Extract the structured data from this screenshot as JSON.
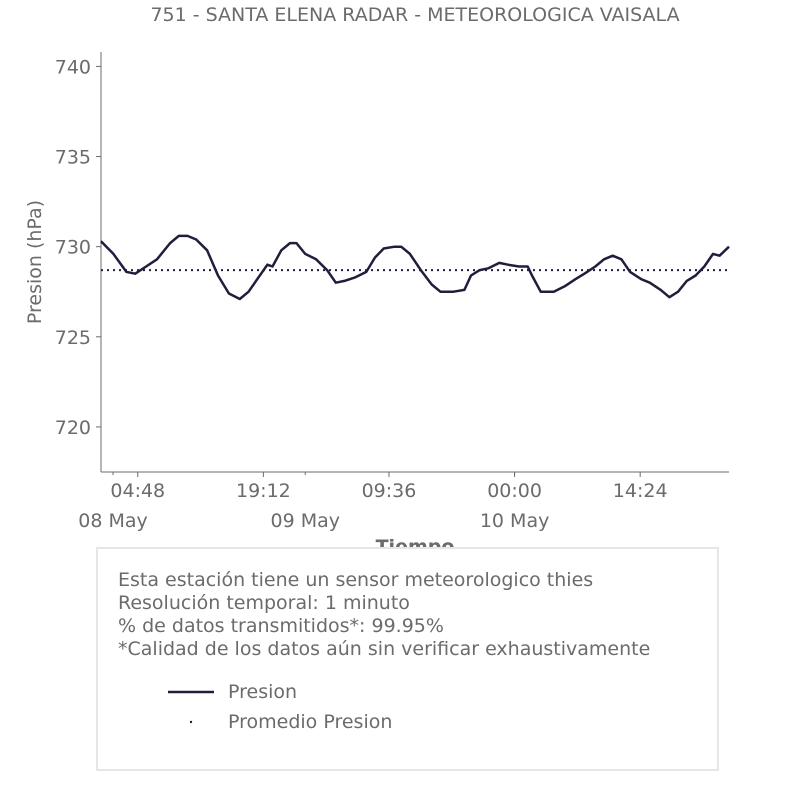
{
  "chart_data": {
    "type": "line",
    "title": "751 - SANTA ELENA RADAR - METEOROLOGICA VAISALA",
    "xlabel": "Tiempo",
    "ylabel": "Presion (hPa)",
    "ylim": [
      717.5,
      740.8
    ],
    "xlim": [
      "2024-05-08 00:35",
      "2024-05-11 00:35"
    ],
    "yticks": [
      720,
      725,
      730,
      735,
      740
    ],
    "xticks": [
      {
        "time": "2024-05-08 04:48",
        "label": "04:48"
      },
      {
        "time": "2024-05-08 19:12",
        "label": "19:12"
      },
      {
        "time": "2024-05-09 09:36",
        "label": "09:36"
      },
      {
        "time": "2024-05-10 00:00",
        "label": "00:00"
      },
      {
        "time": "2024-05-10 14:24",
        "label": "14:24"
      }
    ],
    "date_labels": [
      {
        "time": "2024-05-08 00:00",
        "label": "08 May"
      },
      {
        "time": "2024-05-09 00:00",
        "label": "09 May"
      },
      {
        "time": "2024-05-10 00:00",
        "label": "10 May"
      }
    ],
    "grid": false,
    "series": [
      {
        "name": "Presion",
        "color": "#1f1f3d",
        "style": "solid",
        "points": [
          [
            "2024-05-08 00:35",
            730.3
          ],
          [
            "2024-05-08 02:00",
            729.6
          ],
          [
            "2024-05-08 03:30",
            728.6
          ],
          [
            "2024-05-08 04:30",
            728.5
          ],
          [
            "2024-05-08 05:45",
            728.9
          ],
          [
            "2024-05-08 07:00",
            729.3
          ],
          [
            "2024-05-08 08:30",
            730.2
          ],
          [
            "2024-05-08 09:30",
            730.6
          ],
          [
            "2024-05-08 10:30",
            730.6
          ],
          [
            "2024-05-08 11:30",
            730.4
          ],
          [
            "2024-05-08 12:45",
            729.8
          ],
          [
            "2024-05-08 14:00",
            728.4
          ],
          [
            "2024-05-08 15:15",
            727.4
          ],
          [
            "2024-05-08 16:30",
            727.1
          ],
          [
            "2024-05-08 17:30",
            727.5
          ],
          [
            "2024-05-08 18:30",
            728.2
          ],
          [
            "2024-05-08 19:40",
            729.0
          ],
          [
            "2024-05-08 20:15",
            728.9
          ],
          [
            "2024-05-08 21:15",
            729.8
          ],
          [
            "2024-05-08 22:15",
            730.2
          ],
          [
            "2024-05-08 23:00",
            730.2
          ],
          [
            "2024-05-09 00:00",
            729.6
          ],
          [
            "2024-05-09 01:15",
            729.3
          ],
          [
            "2024-05-09 02:30",
            728.7
          ],
          [
            "2024-05-09 03:30",
            728.0
          ],
          [
            "2024-05-09 04:30",
            728.1
          ],
          [
            "2024-05-09 05:45",
            728.3
          ],
          [
            "2024-05-09 07:00",
            728.6
          ],
          [
            "2024-05-09 08:00",
            729.4
          ],
          [
            "2024-05-09 09:00",
            729.9
          ],
          [
            "2024-05-09 10:15",
            730.0
          ],
          [
            "2024-05-09 11:00",
            730.0
          ],
          [
            "2024-05-09 12:00",
            729.6
          ],
          [
            "2024-05-09 13:15",
            728.7
          ],
          [
            "2024-05-09 14:30",
            727.9
          ],
          [
            "2024-05-09 15:30",
            727.5
          ],
          [
            "2024-05-09 17:00",
            727.5
          ],
          [
            "2024-05-09 18:15",
            727.6
          ],
          [
            "2024-05-09 19:00",
            728.4
          ],
          [
            "2024-05-09 20:00",
            728.7
          ],
          [
            "2024-05-09 21:00",
            728.8
          ],
          [
            "2024-05-09 22:15",
            729.1
          ],
          [
            "2024-05-09 23:15",
            729.0
          ],
          [
            "2024-05-10 00:30",
            728.9
          ],
          [
            "2024-05-10 01:30",
            728.9
          ],
          [
            "2024-05-10 02:00",
            728.4
          ],
          [
            "2024-05-10 03:00",
            727.5
          ],
          [
            "2024-05-10 04:30",
            727.5
          ],
          [
            "2024-05-10 05:45",
            727.8
          ],
          [
            "2024-05-10 07:00",
            728.2
          ],
          [
            "2024-05-10 08:00",
            728.5
          ],
          [
            "2024-05-10 09:15",
            728.9
          ],
          [
            "2024-05-10 10:15",
            729.3
          ],
          [
            "2024-05-10 11:15",
            729.5
          ],
          [
            "2024-05-10 12:15",
            729.3
          ],
          [
            "2024-05-10 13:15",
            728.6
          ],
          [
            "2024-05-10 14:30",
            728.2
          ],
          [
            "2024-05-10 15:30",
            728.0
          ],
          [
            "2024-05-10 16:45",
            727.6
          ],
          [
            "2024-05-10 17:45",
            727.2
          ],
          [
            "2024-05-10 18:45",
            727.5
          ],
          [
            "2024-05-10 19:45",
            728.1
          ],
          [
            "2024-05-10 20:45",
            728.4
          ],
          [
            "2024-05-10 21:45",
            728.9
          ],
          [
            "2024-05-10 22:45",
            729.6
          ],
          [
            "2024-05-10 23:30",
            729.5
          ],
          [
            "2024-05-11 00:35",
            730.0
          ]
        ]
      },
      {
        "name": "Promedio Presion",
        "color": "#1f1f3d",
        "style": "dotted",
        "value": 728.7
      }
    ]
  },
  "info": {
    "line1": "Esta estación tiene un sensor meteorologico thies",
    "line2": "Resolución temporal: 1 minuto",
    "line3": "% de datos transmitidos*: 99.95%",
    "line4": "*Calidad de los datos aún sin verificar exhaustivamente"
  },
  "colors": {
    "text": "#6b6b6b",
    "series": "#1f1f3d",
    "axis": "#6b6b6b",
    "box_border": "#e6e6e6"
  }
}
